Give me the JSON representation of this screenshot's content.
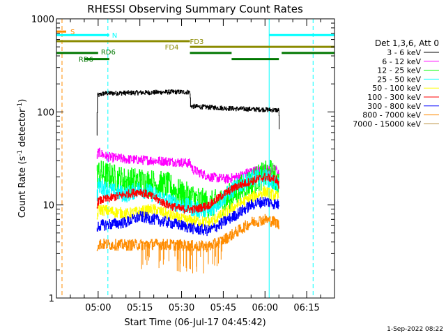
{
  "chart_data": {
    "type": "line",
    "title": "RHESSI Observing Summary Count Rates",
    "xlabel": "Start Time (06-Jul-17 04:45:42)",
    "ylabel_main": "Count Rate (s",
    "ylabel_sup1": "-1",
    "ylabel_mid": " detector",
    "ylabel_sup2": "-1",
    "ylabel_end": ")",
    "y_scale": "log",
    "ylim": [
      1,
      1000
    ],
    "xlim_minutes": [
      -15,
      85
    ],
    "ytick_labels": [
      {
        "label": "1",
        "value": 1
      },
      {
        "label": "10",
        "value": 10
      },
      {
        "label": "100",
        "value": 100
      },
      {
        "label": "1000",
        "value": 1000
      }
    ],
    "xtick_labels": [
      {
        "label": "05:00",
        "minutes": 0
      },
      {
        "label": "05:15",
        "minutes": 15
      },
      {
        "label": "05:30",
        "minutes": 30
      },
      {
        "label": "05:45",
        "minutes": 45
      },
      {
        "label": "06:00",
        "minutes": 60
      },
      {
        "label": "06:15",
        "minutes": 75
      }
    ],
    "legend_header": "Det 1,3,6, Att 0",
    "legend_placement": "right",
    "timestamp": "1-Sep-2022 08:22",
    "series": [
      {
        "name": "3 - 6 keV",
        "color": "#000000",
        "noise": 0.025,
        "points": [
          [
            -0.5,
            55
          ],
          [
            -0.3,
            150
          ],
          [
            2,
            158
          ],
          [
            10,
            160
          ],
          [
            20,
            162
          ],
          [
            28,
            164
          ],
          [
            33,
            163
          ],
          [
            33.2,
            115
          ],
          [
            40,
            112
          ],
          [
            50,
            108
          ],
          [
            60,
            106
          ],
          [
            65,
            104
          ],
          [
            65.1,
            65
          ]
        ]
      },
      {
        "name": "6 - 12 keV",
        "color": "#ff00ff",
        "noise": 0.05,
        "points": [
          [
            -0.5,
            32
          ],
          [
            0,
            37
          ],
          [
            3,
            33
          ],
          [
            10,
            31
          ],
          [
            20,
            30
          ],
          [
            28,
            29
          ],
          [
            33,
            28
          ],
          [
            34,
            24
          ],
          [
            40,
            20
          ],
          [
            46,
            19
          ],
          [
            50,
            20
          ],
          [
            55,
            23
          ],
          [
            60,
            24
          ],
          [
            64,
            24
          ],
          [
            65,
            22
          ]
        ]
      },
      {
        "name": "12 - 25 keV",
        "color": "#00ff00",
        "noise": 0.15,
        "points": [
          [
            -0.5,
            20
          ],
          [
            0,
            22
          ],
          [
            5,
            20
          ],
          [
            10,
            18
          ],
          [
            15,
            18
          ],
          [
            20,
            17
          ],
          [
            25,
            16
          ],
          [
            30,
            13
          ],
          [
            34,
            12
          ],
          [
            40,
            10
          ],
          [
            45,
            11
          ],
          [
            50,
            14
          ],
          [
            55,
            18
          ],
          [
            60,
            21
          ],
          [
            62,
            22
          ],
          [
            65,
            17
          ]
        ]
      },
      {
        "name": "25 - 50 keV",
        "color": "#00ffff",
        "noise": 0.09,
        "points": [
          [
            -0.5,
            13
          ],
          [
            0,
            16
          ],
          [
            5,
            14
          ],
          [
            10,
            13
          ],
          [
            15,
            15
          ],
          [
            20,
            13
          ],
          [
            25,
            11
          ],
          [
            30,
            10
          ],
          [
            35,
            9
          ],
          [
            40,
            8.5
          ],
          [
            45,
            12
          ],
          [
            50,
            16
          ],
          [
            55,
            19
          ],
          [
            60,
            20
          ],
          [
            65,
            16
          ]
        ]
      },
      {
        "name": "50 - 100 keV",
        "color": "#ffff00",
        "noise": 0.06,
        "points": [
          [
            -0.5,
            7
          ],
          [
            0,
            9
          ],
          [
            10,
            8
          ],
          [
            20,
            9
          ],
          [
            30,
            7
          ],
          [
            40,
            6.5
          ],
          [
            45,
            8
          ],
          [
            50,
            10
          ],
          [
            55,
            12
          ],
          [
            60,
            14
          ],
          [
            65,
            12
          ]
        ]
      },
      {
        "name": "100 - 300 keV",
        "color": "#ff0000",
        "noise": 0.045,
        "points": [
          [
            -0.5,
            10
          ],
          [
            0,
            11
          ],
          [
            5,
            12
          ],
          [
            10,
            13
          ],
          [
            15,
            14
          ],
          [
            20,
            12
          ],
          [
            25,
            10
          ],
          [
            30,
            9
          ],
          [
            35,
            9
          ],
          [
            40,
            10
          ],
          [
            45,
            13
          ],
          [
            50,
            16
          ],
          [
            55,
            18
          ],
          [
            60,
            20
          ],
          [
            64,
            19
          ],
          [
            65,
            16
          ]
        ]
      },
      {
        "name": "300 - 800 keV",
        "color": "#0000ff",
        "noise": 0.06,
        "points": [
          [
            -0.5,
            5
          ],
          [
            0,
            6
          ],
          [
            10,
            6.5
          ],
          [
            15,
            7.5
          ],
          [
            20,
            7
          ],
          [
            25,
            6.5
          ],
          [
            30,
            6
          ],
          [
            35,
            5.5
          ],
          [
            40,
            5.3
          ],
          [
            45,
            6.5
          ],
          [
            50,
            8
          ],
          [
            55,
            10
          ],
          [
            60,
            11
          ],
          [
            65,
            10
          ]
        ]
      },
      {
        "name": "800 - 7000 keV",
        "color": "#ff8c00",
        "noise": 0.06,
        "points": [
          [
            -0.5,
            3.5
          ],
          [
            0,
            3.8
          ],
          [
            10,
            3.7
          ],
          [
            20,
            3.8
          ],
          [
            30,
            3.7
          ],
          [
            35,
            3.6
          ],
          [
            40,
            3.6
          ],
          [
            45,
            4.2
          ],
          [
            50,
            5.2
          ],
          [
            55,
            6.5
          ],
          [
            60,
            7
          ],
          [
            64,
            6.5
          ],
          [
            65,
            6
          ]
        ]
      },
      {
        "name": "7000 - 15000 keV",
        "color": "#bc8f3f",
        "noise": 0.0,
        "points": []
      }
    ],
    "segment_bars": [
      {
        "label": "S",
        "color": "#ff8c00",
        "segments": [
          [
            -15,
            -11.5
          ]
        ],
        "level": 730,
        "label_at": -10
      },
      {
        "label": "N",
        "color": "#00ffff",
        "segments": [
          [
            -15,
            4
          ],
          [
            61.5,
            85
          ]
        ],
        "level": 670,
        "label_at": 5
      },
      {
        "label": "FD3",
        "color": "#8b8b00",
        "segments": [
          [
            -15,
            33
          ]
        ],
        "level": 575,
        "label_at": 33
      },
      {
        "label": "FD4",
        "color": "#8b8b00",
        "segments": [
          [
            33,
            85
          ]
        ],
        "level": 500,
        "label_at": 24
      },
      {
        "label": "RD6",
        "color": "#007700",
        "segments": [
          [
            -15,
            0
          ],
          [
            33,
            48
          ],
          [
            66,
            85
          ]
        ],
        "level": 430,
        "label_at": 1
      },
      {
        "label": "RD6",
        "color": "#007700",
        "segments": [
          [
            -5,
            4
          ],
          [
            48,
            65
          ]
        ],
        "level": 370,
        "label_at": -7
      }
    ],
    "vlines": [
      {
        "minutes": -15,
        "color": "#00ffff",
        "style": "solid"
      },
      {
        "minutes": -13,
        "color": "#ff8c00",
        "style": "dashed"
      },
      {
        "minutes": 3.5,
        "color": "#00ffff",
        "style": "dashed"
      },
      {
        "minutes": 61.5,
        "color": "#00ffff",
        "style": "solid"
      },
      {
        "minutes": 77.3,
        "color": "#00ffff",
        "style": "dashed"
      }
    ]
  }
}
